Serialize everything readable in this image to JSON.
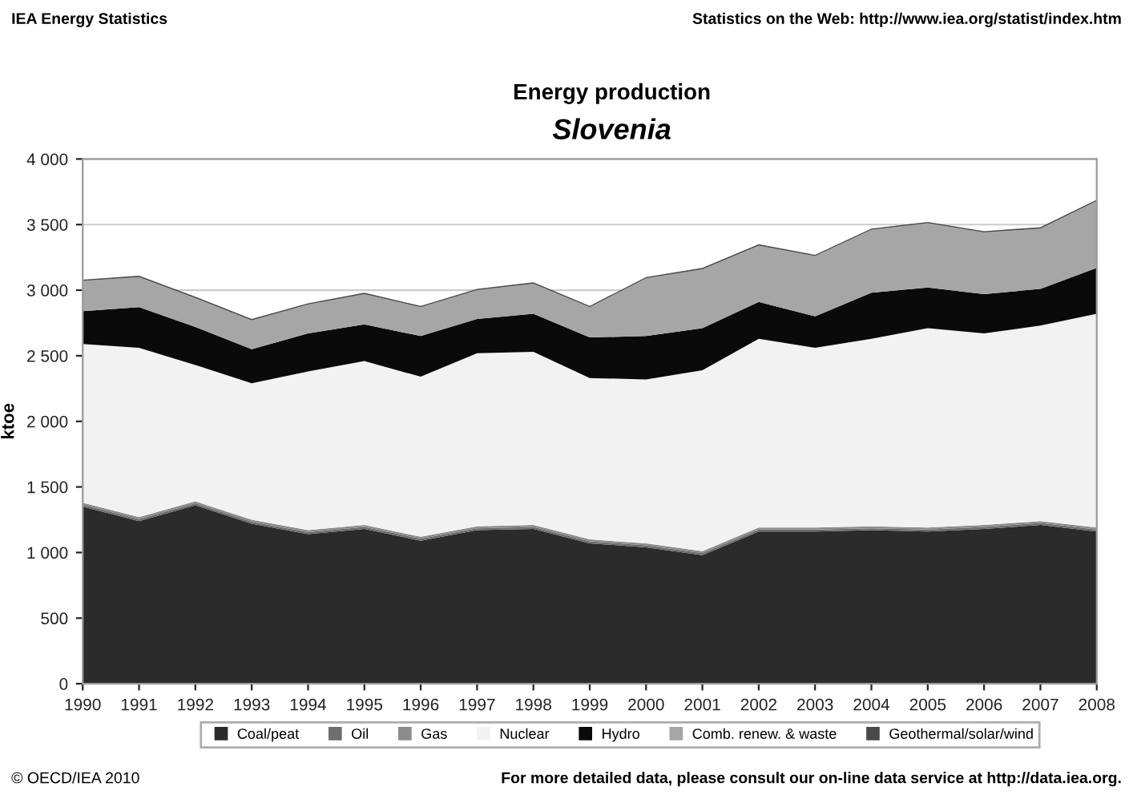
{
  "chart_data": {
    "type": "area",
    "stacked": true,
    "title": "Energy production",
    "subtitle": "Slovenia",
    "ylabel": "ktoe",
    "annotations": [
      "IEA Energy Statistics",
      "Statistics on the Web: http://www.iea.org/statist/index.htm",
      "© OECD/IEA 2010",
      "For more detailed data, please consult our on-line data service at http://data.iea.org."
    ],
    "x": [
      1990,
      1991,
      1992,
      1993,
      1994,
      1995,
      1996,
      1997,
      1998,
      1999,
      2000,
      2001,
      2002,
      2003,
      2004,
      2005,
      2006,
      2007,
      2008
    ],
    "series": [
      {
        "name": "Coal/peat",
        "color": "#2b2b2b",
        "values": [
          1350,
          1240,
          1360,
          1220,
          1140,
          1180,
          1090,
          1170,
          1180,
          1070,
          1040,
          980,
          1160,
          1160,
          1170,
          1160,
          1180,
          1210,
          1160
        ]
      },
      {
        "name": "Oil",
        "color": "#6e6e6e",
        "values": [
          15,
          15,
          15,
          15,
          15,
          15,
          15,
          15,
          15,
          15,
          15,
          15,
          15,
          15,
          15,
          15,
          15,
          15,
          15
        ]
      },
      {
        "name": "Gas",
        "color": "#8c8c8c",
        "values": [
          15,
          15,
          15,
          15,
          15,
          15,
          15,
          15,
          15,
          15,
          15,
          15,
          15,
          15,
          15,
          15,
          15,
          15,
          15
        ]
      },
      {
        "name": "Nuclear",
        "color": "#f2f2f2",
        "values": [
          1210,
          1290,
          1040,
          1040,
          1210,
          1250,
          1220,
          1320,
          1320,
          1230,
          1250,
          1380,
          1440,
          1370,
          1430,
          1520,
          1460,
          1490,
          1630
        ]
      },
      {
        "name": "Hydro",
        "color": "#0a0a0a",
        "values": [
          250,
          310,
          290,
          260,
          290,
          280,
          310,
          260,
          290,
          310,
          330,
          320,
          280,
          240,
          350,
          310,
          300,
          280,
          350
        ]
      },
      {
        "name": "Comb. renew. & waste",
        "color": "#a6a6a6",
        "values": [
          230,
          230,
          220,
          220,
          220,
          230,
          220,
          220,
          230,
          230,
          440,
          450,
          430,
          460,
          480,
          490,
          470,
          460,
          510
        ]
      },
      {
        "name": "Geothermal/solar/wind",
        "color": "#4a4a4a",
        "values": [
          10,
          10,
          10,
          10,
          10,
          10,
          10,
          10,
          10,
          10,
          10,
          10,
          10,
          10,
          10,
          10,
          10,
          10,
          10
        ]
      }
    ],
    "xlim": [
      1990,
      2008
    ],
    "xticks": [
      1990,
      1991,
      1992,
      1993,
      1994,
      1995,
      1996,
      1997,
      1998,
      1999,
      2000,
      2001,
      2002,
      2003,
      2004,
      2005,
      2006,
      2007,
      2008
    ],
    "ylim": [
      0,
      4000
    ],
    "yticks": [
      0,
      500,
      {
        "value": 1000,
        "label": "1 000"
      },
      {
        "value": 1500,
        "label": "1 500"
      },
      {
        "value": 2000,
        "label": "2 000"
      },
      {
        "value": 2500,
        "label": "2 500"
      },
      {
        "value": 3000,
        "label": "3 000"
      },
      {
        "value": 3500,
        "label": "3 500"
      },
      {
        "value": 4000,
        "label": "4 000"
      }
    ],
    "grid": "y",
    "legend": "bottom"
  }
}
